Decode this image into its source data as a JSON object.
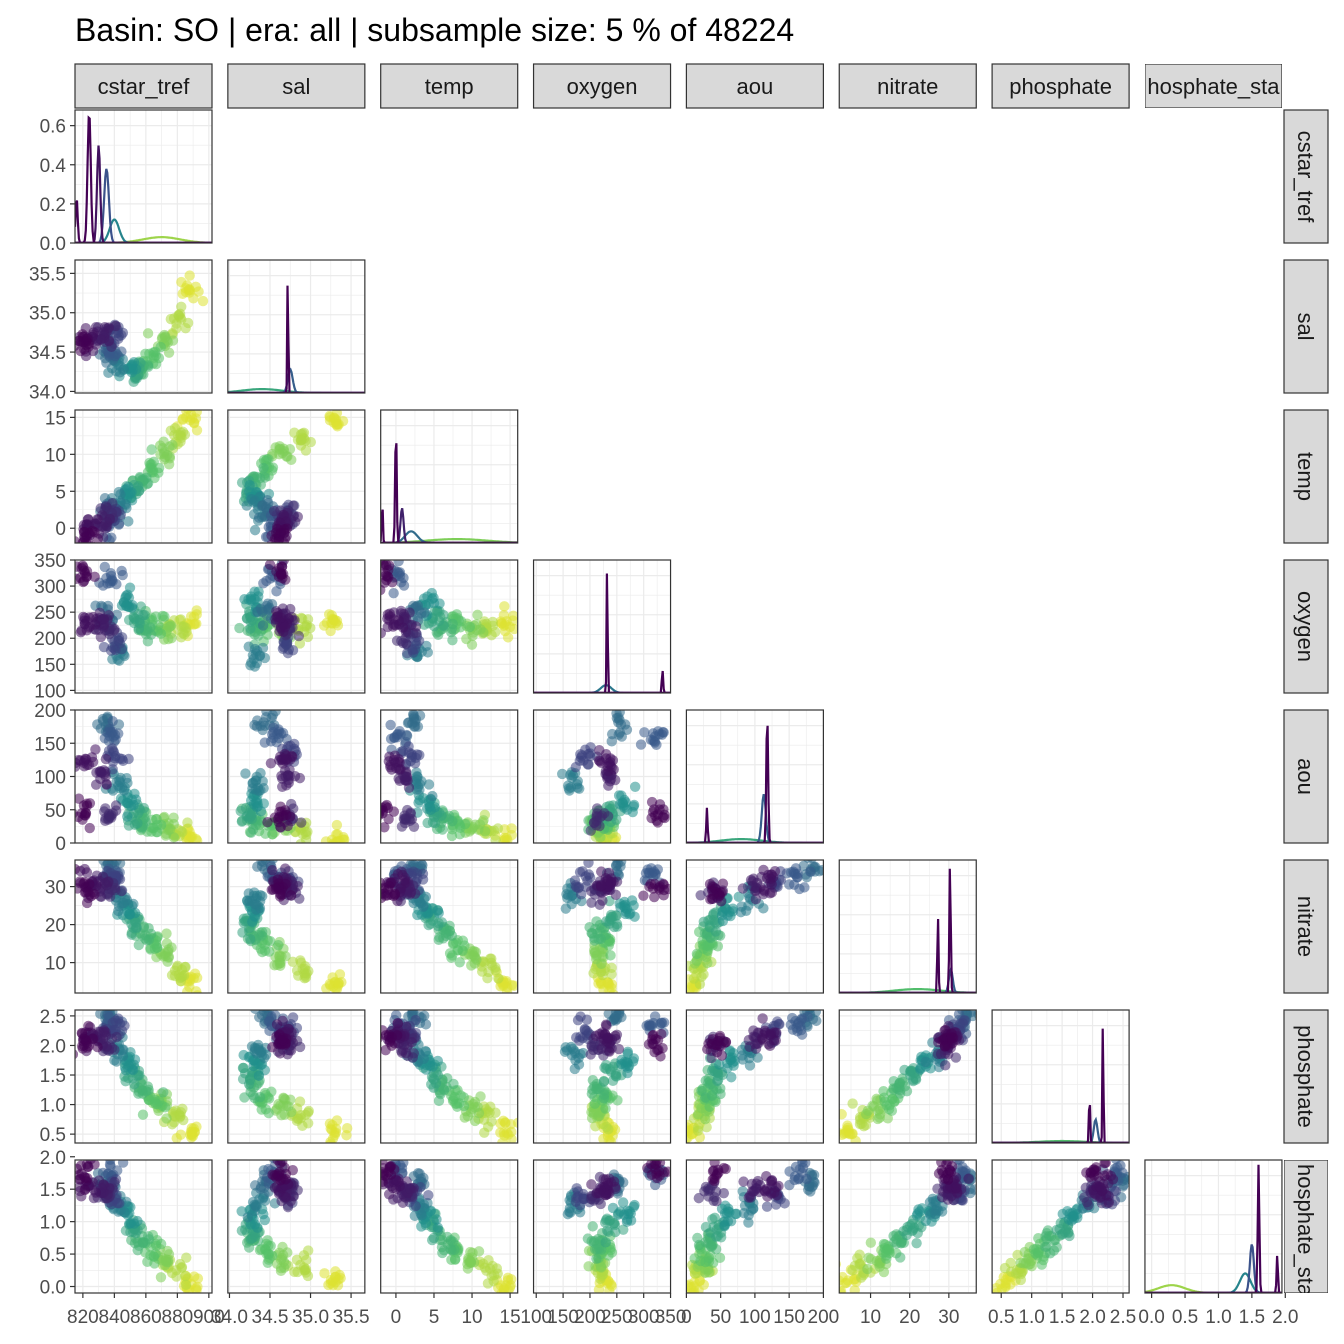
{
  "title": "Basin: SO | era: all | subsample size: 5 % of 48224",
  "colors": {
    "viridis": [
      "#440154",
      "#3b528b",
      "#21908c",
      "#5dc863",
      "#fde725"
    ],
    "density_line": "#440154",
    "strip_fill": "#d9d9d9",
    "strip_border": "#333333",
    "panel_border": "#333333",
    "grid": "#ebebeb"
  },
  "chart_data": {
    "type": "scatter-matrix",
    "variables": [
      "cstar_tref",
      "sal",
      "temp",
      "oxygen",
      "aou",
      "nitrate",
      "phosphate",
      "phosphate_star"
    ],
    "column_strips": [
      "cstar_tref",
      "sal",
      "temp",
      "oxygen",
      "aou",
      "nitrate",
      "phosphate",
      "hosphate_sta"
    ],
    "row_strips": [
      "cstar_tref",
      "sal",
      "temp",
      "oxygen",
      "aou",
      "nitrate",
      "phosphate",
      "hosphate_sta"
    ],
    "layout": "lower-triangle scatter, diagonal density by era",
    "diagonal_ylim": [
      0,
      0.68
    ],
    "diagonal_yticks": [
      "0.0",
      "0.2",
      "0.4",
      "0.6"
    ],
    "axes": [
      {
        "name": "cstar_tref",
        "range": [
          815,
          902
        ],
        "ticks": [
          820,
          840,
          860,
          880,
          900
        ],
        "tick_labels": [
          "820",
          "840",
          "860",
          "880",
          "900"
        ]
      },
      {
        "name": "sal",
        "range": [
          33.98,
          35.67
        ],
        "ticks": [
          34.0,
          34.5,
          35.0,
          35.5
        ],
        "tick_labels": [
          "34.0",
          "34.5",
          "35.0",
          "35.5"
        ]
      },
      {
        "name": "temp",
        "range": [
          -2,
          16
        ],
        "ticks": [
          0,
          5,
          10,
          15
        ],
        "tick_labels": [
          "0",
          "5",
          "10",
          "15"
        ]
      },
      {
        "name": "oxygen",
        "range": [
          95,
          350
        ],
        "ticks": [
          100,
          150,
          200,
          250,
          300,
          350
        ],
        "tick_labels": [
          "100",
          "150",
          "200",
          "250",
          "300",
          "350"
        ]
      },
      {
        "name": "aou",
        "range": [
          0,
          200
        ],
        "ticks": [
          0,
          50,
          100,
          150,
          200
        ],
        "tick_labels": [
          "0",
          "50",
          "100",
          "150",
          "200"
        ]
      },
      {
        "name": "nitrate",
        "range": [
          2,
          37
        ],
        "ticks": [
          10,
          20,
          30
        ],
        "tick_labels": [
          "10",
          "20",
          "30"
        ]
      },
      {
        "name": "phosphate",
        "range": [
          0.35,
          2.6
        ],
        "ticks": [
          0.5,
          1.0,
          1.5,
          2.0,
          2.5
        ],
        "tick_labels": [
          "0.5",
          "1.0",
          "1.5",
          "2.0",
          "2.5"
        ]
      },
      {
        "name": "phosphate_star",
        "range": [
          -0.1,
          1.95
        ],
        "ticks": [
          0.0,
          0.5,
          1.0,
          1.5,
          2.0
        ],
        "tick_labels": [
          "0.0",
          "0.5",
          "1.0",
          "1.5",
          "2.0"
        ]
      }
    ],
    "cluster_points": [
      {
        "color_index": 0.0,
        "cstar_tref": 821,
        "sal": 34.62,
        "temp": -1.2,
        "oxygen": 325,
        "aou": 45,
        "nitrate": 29,
        "phosphate": 2.05,
        "phosphate_star": 1.8
      },
      {
        "color_index": 0.05,
        "cstar_tref": 823,
        "sal": 34.65,
        "temp": -0.2,
        "oxygen": 230,
        "aou": 120,
        "nitrate": 31,
        "phosphate": 2.15,
        "phosphate_star": 1.55
      },
      {
        "color_index": 0.08,
        "cstar_tref": 832,
        "sal": 34.7,
        "temp": 1.0,
        "oxygen": 235,
        "aou": 100,
        "nitrate": 30,
        "phosphate": 2.1,
        "phosphate_star": 1.5
      },
      {
        "color_index": 0.12,
        "cstar_tref": 836,
        "sal": 34.72,
        "temp": 1.5,
        "oxygen": 215,
        "aou": 40,
        "nitrate": 29.5,
        "phosphate": 2.0,
        "phosphate_star": 1.45
      },
      {
        "color_index": 0.2,
        "cstar_tref": 840,
        "sal": 34.72,
        "temp": 2.0,
        "oxygen": 190,
        "aou": 130,
        "nitrate": 32,
        "phosphate": 2.25,
        "phosphate_star": 1.4
      },
      {
        "color_index": 0.28,
        "cstar_tref": 838,
        "sal": 34.55,
        "temp": 0.5,
        "oxygen": 320,
        "aou": 160,
        "nitrate": 33,
        "phosphate": 2.35,
        "phosphate_star": 1.75
      },
      {
        "color_index": 0.35,
        "cstar_tref": 836,
        "sal": 34.45,
        "temp": 2.5,
        "oxygen": 250,
        "aou": 180,
        "nitrate": 35,
        "phosphate": 2.5,
        "phosphate_star": 1.6
      },
      {
        "color_index": 0.42,
        "cstar_tref": 842,
        "sal": 34.35,
        "temp": 3.0,
        "oxygen": 170,
        "aou": 90,
        "nitrate": 27,
        "phosphate": 1.9,
        "phosphate_star": 1.25
      },
      {
        "color_index": 0.5,
        "cstar_tref": 848,
        "sal": 34.3,
        "temp": 4.0,
        "oxygen": 270,
        "aou": 60,
        "nitrate": 24,
        "phosphate": 1.7,
        "phosphate_star": 1.1
      },
      {
        "color_index": 0.58,
        "cstar_tref": 852,
        "sal": 34.25,
        "temp": 5.0,
        "oxygen": 240,
        "aou": 45,
        "nitrate": 21,
        "phosphate": 1.5,
        "phosphate_star": 0.9
      },
      {
        "color_index": 0.65,
        "cstar_tref": 858,
        "sal": 34.3,
        "temp": 6.5,
        "oxygen": 215,
        "aou": 35,
        "nitrate": 18,
        "phosphate": 1.3,
        "phosphate_star": 0.7
      },
      {
        "color_index": 0.72,
        "cstar_tref": 865,
        "sal": 34.45,
        "temp": 8.0,
        "oxygen": 230,
        "aou": 30,
        "nitrate": 15,
        "phosphate": 1.1,
        "phosphate_star": 0.55
      },
      {
        "color_index": 0.8,
        "cstar_tref": 872,
        "sal": 34.65,
        "temp": 10.0,
        "oxygen": 215,
        "aou": 25,
        "nitrate": 12,
        "phosphate": 0.95,
        "phosphate_star": 0.4
      },
      {
        "color_index": 0.88,
        "cstar_tref": 880,
        "sal": 34.9,
        "temp": 12.0,
        "oxygen": 220,
        "aou": 20,
        "nitrate": 8,
        "phosphate": 0.8,
        "phosphate_star": 0.25
      },
      {
        "color_index": 0.95,
        "cstar_tref": 888,
        "sal": 35.3,
        "temp": 14.5,
        "oxygen": 230,
        "aou": 8,
        "nitrate": 4,
        "phosphate": 0.55,
        "phosphate_star": 0.05
      }
    ],
    "diagonal_peaks": [
      {
        "variable": "cstar_tref",
        "peaks": [
          {
            "x": 816,
            "h": 0.23,
            "w": 0.7,
            "c": 0.0
          },
          {
            "x": 824,
            "h": 0.67,
            "w": 1.0,
            "c": 0.0
          },
          {
            "x": 830,
            "h": 0.5,
            "w": 1.0,
            "c": 0.05
          },
          {
            "x": 835,
            "h": 0.38,
            "w": 1.5,
            "c": 0.25
          },
          {
            "x": 840,
            "h": 0.12,
            "w": 3.0,
            "c": 0.45
          },
          {
            "x": 870,
            "h": 0.03,
            "w": 12.0,
            "c": 0.85
          }
        ]
      },
      {
        "variable": "sal",
        "peaks": [
          {
            "x": 34.72,
            "h": 0.66,
            "w": 0.006,
            "c": 0.0
          },
          {
            "x": 34.75,
            "h": 0.12,
            "w": 0.03,
            "c": 0.3
          },
          {
            "x": 34.4,
            "h": 0.02,
            "w": 0.25,
            "c": 0.6
          }
        ]
      },
      {
        "variable": "temp",
        "peaks": [
          {
            "x": -1.8,
            "h": 0.22,
            "w": 0.08,
            "c": 0.0
          },
          {
            "x": 0.0,
            "h": 0.6,
            "w": 0.1,
            "c": 0.0
          },
          {
            "x": 0.8,
            "h": 0.18,
            "w": 0.2,
            "c": 0.1
          },
          {
            "x": 2.0,
            "h": 0.06,
            "w": 0.8,
            "c": 0.35
          },
          {
            "x": 8.0,
            "h": 0.02,
            "w": 4.0,
            "c": 0.8
          }
        ]
      },
      {
        "variable": "oxygen",
        "peaks": [
          {
            "x": 232,
            "h": 0.66,
            "w": 1.0,
            "c": 0.0
          },
          {
            "x": 335,
            "h": 0.12,
            "w": 1.2,
            "c": 0.0
          },
          {
            "x": 230,
            "h": 0.04,
            "w": 10.0,
            "c": 0.4
          }
        ]
      },
      {
        "variable": "aou",
        "peaks": [
          {
            "x": 118,
            "h": 0.66,
            "w": 1.3,
            "c": 0.0
          },
          {
            "x": 30,
            "h": 0.18,
            "w": 1.0,
            "c": 0.0
          },
          {
            "x": 113,
            "h": 0.25,
            "w": 3.0,
            "c": 0.3
          },
          {
            "x": 80,
            "h": 0.02,
            "w": 30.0,
            "c": 0.6
          }
        ]
      },
      {
        "variable": "nitrate",
        "peaks": [
          {
            "x": 30.3,
            "h": 0.66,
            "w": 0.18,
            "c": 0.0
          },
          {
            "x": 27.2,
            "h": 0.4,
            "w": 0.15,
            "c": 0.0
          },
          {
            "x": 30.5,
            "h": 0.12,
            "w": 0.5,
            "c": 0.3
          },
          {
            "x": 22.0,
            "h": 0.02,
            "w": 6.0,
            "c": 0.7
          }
        ]
      },
      {
        "variable": "phosphate",
        "peaks": [
          {
            "x": 2.17,
            "h": 0.66,
            "w": 0.008,
            "c": 0.0
          },
          {
            "x": 1.95,
            "h": 0.25,
            "w": 0.01,
            "c": 0.0
          },
          {
            "x": 2.05,
            "h": 0.12,
            "w": 0.03,
            "c": 0.3
          },
          {
            "x": 1.5,
            "h": 0.01,
            "w": 0.4,
            "c": 0.7
          }
        ]
      },
      {
        "variable": "phosphate_star",
        "peaks": [
          {
            "x": 1.6,
            "h": 0.66,
            "w": 0.012,
            "c": 0.0
          },
          {
            "x": 1.88,
            "h": 0.2,
            "w": 0.01,
            "c": 0.0
          },
          {
            "x": 1.5,
            "h": 0.25,
            "w": 0.03,
            "c": 0.25
          },
          {
            "x": 1.4,
            "h": 0.1,
            "w": 0.08,
            "c": 0.45
          },
          {
            "x": 0.3,
            "h": 0.04,
            "w": 0.2,
            "c": 0.85
          }
        ]
      }
    ]
  }
}
